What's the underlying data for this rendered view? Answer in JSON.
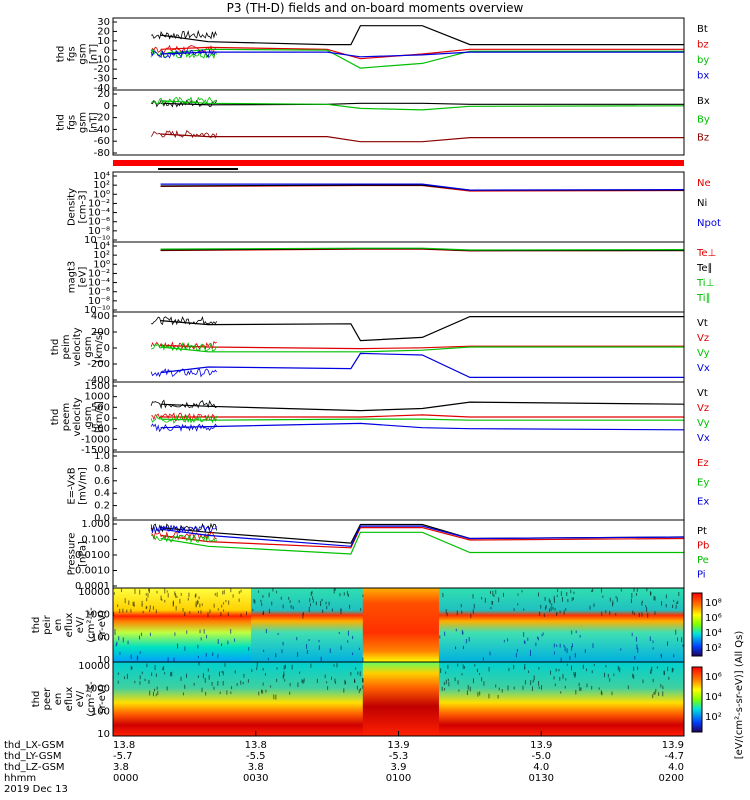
{
  "title": "P3 (TH-D) fields and on-board moments overview",
  "colors": {
    "black": "#000000",
    "red": "#e00000",
    "green": "#00c000",
    "blue": "#0000e0",
    "darkred": "#8b0000",
    "lightred": "#ff0000"
  },
  "x_axis": {
    "minutes": [
      0,
      30,
      60,
      90,
      120
    ],
    "rows": [
      {
        "label": "thd_LX-GSM",
        "values": [
          "13.8",
          "13.8",
          "13.9",
          "13.9",
          "13.9"
        ]
      },
      {
        "label": "thd_LY-GSM",
        "values": [
          "-5.7",
          "-5.5",
          "-5.3",
          "-5.0",
          "-4.7"
        ]
      },
      {
        "label": "thd_LZ-GSM",
        "values": [
          "3.8",
          "3.8",
          "3.9",
          "4.0",
          "4.0"
        ]
      },
      {
        "label": "hhmm",
        "values": [
          "0000",
          "0030",
          "0100",
          "0130",
          "0200"
        ]
      }
    ],
    "date": "2019 Dec 13"
  },
  "panels": [
    {
      "id": "fgs-gsm",
      "ylabel": [
        "thd",
        "fgs",
        "gsm",
        "[nT]"
      ],
      "ticks": [
        "30",
        "20",
        "10",
        "0",
        "-10",
        "-20",
        "-30",
        "-40"
      ],
      "ylim": [
        -40,
        30
      ],
      "yscale": "linear",
      "legend": [
        {
          "t": "Bt",
          "c": "black"
        },
        {
          "t": "bz",
          "c": "red"
        },
        {
          "t": "by",
          "c": "green"
        },
        {
          "t": "bx",
          "c": "blue"
        }
      ]
    },
    {
      "id": "fgs-gsm-2",
      "ylabel": [
        "thd",
        "fgs",
        "gsm",
        "[nT]"
      ],
      "ticks": [
        "20",
        "0",
        "-20",
        "-40",
        "-60",
        "-80"
      ],
      "ylim": [
        -90,
        25
      ],
      "yscale": "linear",
      "legend": [
        {
          "t": "Bx",
          "c": "black"
        },
        {
          "t": "By",
          "c": "green"
        },
        {
          "t": "Bz",
          "c": "darkred"
        }
      ]
    },
    {
      "id": "density",
      "ylabel": [
        "Density",
        "[cm-3]"
      ],
      "ticks": [
        "10⁴",
        "10²",
        "10⁰",
        "10⁻²",
        "10⁻⁴",
        "10⁻⁶",
        "10⁻⁸",
        "10⁻¹⁰"
      ],
      "ylim": [
        -10,
        4
      ],
      "yscale": "log",
      "legend": [
        {
          "t": "Ne",
          "c": "red"
        },
        {
          "t": "Ni",
          "c": "black"
        },
        {
          "t": "Npot",
          "c": "blue"
        }
      ]
    },
    {
      "id": "temperature",
      "ylabel": [
        "magt3",
        "[eV]"
      ],
      "ticks": [
        "10⁴",
        "10²",
        "10⁰",
        "10⁻²",
        "10⁻⁴",
        "10⁻⁶",
        "10⁻⁸",
        "10⁻¹⁰"
      ],
      "ylim": [
        -10,
        4
      ],
      "yscale": "log",
      "legend": [
        {
          "t": "Te⊥",
          "c": "red"
        },
        {
          "t": "Te∥",
          "c": "black"
        },
        {
          "t": "Ti⊥",
          "c": "green"
        },
        {
          "t": "Ti∥",
          "c": "green"
        }
      ]
    },
    {
      "id": "peim-velocity",
      "ylabel": [
        "thd",
        "peim",
        "velocity",
        "gsm",
        "[km/s]"
      ],
      "ticks": [
        "400",
        "200",
        "0",
        "-200",
        "-400"
      ],
      "ylim": [
        -400,
        400
      ],
      "yscale": "linear",
      "legend": [
        {
          "t": "Vt",
          "c": "black"
        },
        {
          "t": "Vz",
          "c": "red"
        },
        {
          "t": "Vy",
          "c": "green"
        },
        {
          "t": "Vx",
          "c": "blue"
        }
      ]
    },
    {
      "id": "peem-velocity",
      "ylabel": [
        "thd",
        "peem",
        "velocity",
        "gsm",
        "[km/s]"
      ],
      "ticks": [
        "1500",
        "1000",
        "500",
        "0",
        "-500",
        "-1000",
        "-1500"
      ],
      "ylim": [
        -1500,
        1500
      ],
      "yscale": "linear",
      "legend": [
        {
          "t": "Vt",
          "c": "black"
        },
        {
          "t": "Vz",
          "c": "red"
        },
        {
          "t": "Vy",
          "c": "green"
        },
        {
          "t": "Vx",
          "c": "blue"
        }
      ]
    },
    {
      "id": "e-field",
      "ylabel": [
        "E=-VxB",
        "[mV/m]"
      ],
      "ticks": [
        "1.0",
        "0.8",
        "0.6",
        "0.4",
        "0.2",
        "0.0"
      ],
      "ylim": [
        0,
        1
      ],
      "yscale": "linear",
      "legend": [
        {
          "t": "Ez",
          "c": "red"
        },
        {
          "t": "Ey",
          "c": "green"
        },
        {
          "t": "Ex",
          "c": "blue"
        }
      ]
    },
    {
      "id": "pressure",
      "ylabel": [
        "Pressure",
        "[nPa]"
      ],
      "ticks": [
        "1.000",
        "0.100",
        "0.0100",
        "0.0010",
        "0.0001"
      ],
      "ylim": [
        -4,
        0
      ],
      "yscale": "log",
      "legend": [
        {
          "t": "Pt",
          "c": "black"
        },
        {
          "t": "Pb",
          "c": "red"
        },
        {
          "t": "Pe",
          "c": "green"
        },
        {
          "t": "Pi",
          "c": "blue"
        }
      ]
    },
    {
      "id": "peir-eflux",
      "ylabel": [
        "thd",
        "peir",
        "en",
        "eflux",
        "eV/",
        "(cm²-s-",
        "sr-eV)"
      ],
      "ticks": [
        "10000",
        "1000",
        "100",
        "10"
      ],
      "ylim": [
        1,
        4
      ],
      "yscale": "log",
      "spectrogram": true
    },
    {
      "id": "peer-eflux",
      "ylabel": [
        "thd",
        "peer",
        "en",
        "eflux",
        "eV/",
        "(cm²-s-",
        "sr-eV)"
      ],
      "ticks": [
        "10000",
        "1000",
        "100",
        "10"
      ],
      "ylim": [
        1,
        4
      ],
      "yscale": "log",
      "spectrogram": true
    }
  ],
  "colorbar": {
    "label": "[eV/(cm²-s-sr-eV)] (All Qs)",
    "ticks": [
      "10⁸",
      "10⁶",
      "10⁴",
      "10²"
    ],
    "ticks2": [
      "10⁶",
      "10⁴",
      "10²"
    ]
  },
  "chart_data": {
    "type": "line",
    "title": "P3 (TH-D) fields and on-board moments overview",
    "x_unit": "minutes after 2019-12-13 00:00",
    "xlim": [
      0,
      120
    ],
    "time_marks": [
      0,
      30,
      60,
      90,
      120
    ],
    "series": [
      {
        "name": "Bt",
        "panel": "fgs-gsm",
        "x": [
          10,
          20,
          45,
          50,
          52,
          65,
          75,
          90,
          105,
          120
        ],
        "values": [
          15,
          8,
          5,
          5,
          25,
          25,
          5,
          5,
          5,
          5
        ]
      },
      {
        "name": "bz",
        "panel": "fgs-gsm",
        "x": [
          10,
          20,
          45,
          52,
          65,
          75,
          90,
          105,
          120
        ],
        "values": [
          0,
          2,
          0,
          -10,
          -5,
          0,
          0,
          0,
          0
        ]
      },
      {
        "name": "by",
        "panel": "fgs-gsm",
        "x": [
          10,
          20,
          45,
          52,
          65,
          75,
          90,
          105,
          120
        ],
        "values": [
          -5,
          0,
          -1,
          -20,
          -15,
          -2,
          -2,
          -2,
          -2
        ]
      },
      {
        "name": "bx",
        "panel": "fgs-gsm",
        "x": [
          10,
          20,
          45,
          52,
          65,
          75,
          90,
          105,
          120
        ],
        "values": [
          -5,
          -3,
          -3,
          -8,
          -6,
          -3,
          -3,
          -3,
          -3
        ]
      },
      {
        "name": "Bx",
        "panel": "fgs-gsm-2",
        "x": [
          10,
          20,
          45,
          52,
          65,
          75,
          120
        ],
        "values": [
          5,
          2,
          3,
          5,
          5,
          3,
          3
        ]
      },
      {
        "name": "By",
        "panel": "fgs-gsm-2",
        "x": [
          10,
          20,
          45,
          52,
          65,
          75,
          120
        ],
        "values": [
          10,
          5,
          3,
          -5,
          -8,
          -1,
          0
        ]
      },
      {
        "name": "Bz",
        "panel": "fgs-gsm-2",
        "x": [
          10,
          20,
          45,
          52,
          65,
          75,
          120
        ],
        "values": [
          -55,
          -60,
          -60,
          -70,
          -70,
          -62,
          -62
        ]
      },
      {
        "name": "Ne",
        "panel": "density",
        "x": [
          10,
          52,
          65,
          75,
          120
        ],
        "values": [
          1.5,
          1.7,
          1.7,
          0.5,
          0.6
        ]
      },
      {
        "name": "Ni",
        "panel": "density",
        "x": [
          10,
          52,
          65,
          75,
          120
        ],
        "values": [
          1.6,
          1.8,
          1.8,
          0.7,
          0.7
        ]
      },
      {
        "name": "Npot",
        "panel": "density",
        "x": [
          10,
          52,
          65,
          75,
          120
        ],
        "values": [
          2,
          2,
          2,
          0.7,
          0.8
        ]
      },
      {
        "name": "Te⊥",
        "panel": "temperature",
        "x": [
          10,
          52,
          65,
          75,
          120
        ],
        "values": [
          2.8,
          3.1,
          3.1,
          2.7,
          2.8
        ]
      },
      {
        "name": "Te∥",
        "panel": "temperature",
        "x": [
          10,
          52,
          65,
          75,
          120
        ],
        "values": [
          2.9,
          3.2,
          3.2,
          2.8,
          2.8
        ]
      },
      {
        "name": "Ti⊥",
        "panel": "temperature",
        "x": [
          10,
          52,
          65,
          75,
          120
        ],
        "values": [
          3.1,
          3.3,
          3.3,
          2.9,
          3.0
        ]
      },
      {
        "name": "Vt",
        "panel": "peim-velocity",
        "x": [
          10,
          20,
          50,
          52,
          65,
          75,
          120
        ],
        "values": [
          330,
          280,
          290,
          80,
          120,
          380,
          380
        ]
      },
      {
        "name": "Vz",
        "panel": "peim-velocity",
        "x": [
          10,
          20,
          52,
          65,
          75,
          120
        ],
        "values": [
          20,
          0,
          -20,
          -10,
          10,
          10
        ]
      },
      {
        "name": "Vy",
        "panel": "peim-velocity",
        "x": [
          10,
          20,
          52,
          65,
          75,
          120
        ],
        "values": [
          0,
          -60,
          -60,
          -40,
          0,
          0
        ]
      },
      {
        "name": "Vx",
        "panel": "peim-velocity",
        "x": [
          10,
          20,
          50,
          52,
          65,
          75,
          120
        ],
        "values": [
          -320,
          -250,
          -270,
          -80,
          -100,
          -380,
          -380
        ]
      },
      {
        "name": "Vt",
        "panel": "peem-velocity",
        "x": [
          10,
          20,
          52,
          65,
          75,
          120
        ],
        "values": [
          600,
          500,
          300,
          400,
          700,
          600
        ]
      },
      {
        "name": "Vz",
        "panel": "peem-velocity",
        "x": [
          10,
          20,
          52,
          65,
          75,
          120
        ],
        "values": [
          0,
          0,
          0,
          100,
          0,
          0
        ]
      },
      {
        "name": "Vy",
        "panel": "peem-velocity",
        "x": [
          10,
          20,
          52,
          65,
          75,
          120
        ],
        "values": [
          -100,
          -150,
          -100,
          -100,
          -150,
          -150
        ]
      },
      {
        "name": "Vx",
        "panel": "peem-velocity",
        "x": [
          10,
          20,
          52,
          65,
          75,
          120
        ],
        "values": [
          -500,
          -450,
          -300,
          -500,
          -550,
          -600
        ]
      },
      {
        "name": "Pt",
        "panel": "pressure",
        "x": [
          10,
          20,
          50,
          52,
          65,
          75,
          120
        ],
        "values": [
          -0.3,
          -0.6,
          -1.3,
          -0.1,
          -0.1,
          -1.0,
          -0.9
        ]
      },
      {
        "name": "Pb",
        "panel": "pressure",
        "x": [
          10,
          20,
          50,
          52,
          65,
          75,
          120
        ],
        "values": [
          -0.8,
          -1.2,
          -1.6,
          -0.3,
          -0.3,
          -1.1,
          -1.0
        ]
      },
      {
        "name": "Pe",
        "panel": "pressure",
        "x": [
          10,
          20,
          50,
          52,
          65,
          75,
          120
        ],
        "values": [
          -1.0,
          -1.5,
          -2.0,
          -0.6,
          -0.6,
          -1.9,
          -1.9
        ]
      },
      {
        "name": "Pi",
        "panel": "pressure",
        "x": [
          10,
          20,
          50,
          52,
          65,
          75,
          120
        ],
        "values": [
          -0.4,
          -0.8,
          -1.5,
          -0.2,
          -0.2,
          -1.0,
          -0.9
        ]
      }
    ]
  }
}
